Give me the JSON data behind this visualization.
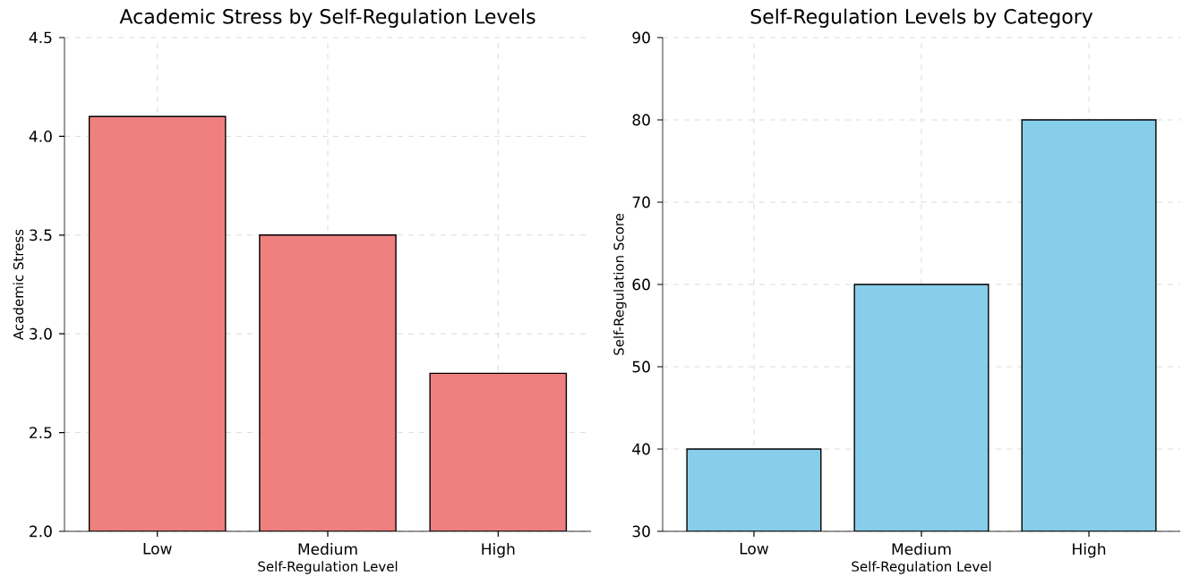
{
  "chart_data": [
    {
      "type": "bar",
      "title": "Academic Stress by Self-Regulation Levels",
      "xlabel": "Self-Regulation Level",
      "ylabel": "Academic Stress",
      "categories": [
        "Low",
        "Medium",
        "High"
      ],
      "values": [
        4.1,
        3.5,
        2.8
      ],
      "color": "#f08080",
      "ylim": [
        2,
        4.5
      ],
      "yticks": [
        {
          "value": 2,
          "label": "2.0"
        },
        {
          "value": 2.5,
          "label": "2.5"
        },
        {
          "value": 3,
          "label": "3.0"
        },
        {
          "value": 3.5,
          "label": "3.5"
        },
        {
          "value": 4,
          "label": "4.0"
        },
        {
          "value": 4.5,
          "label": "4.5"
        }
      ],
      "grid": true
    },
    {
      "type": "bar",
      "title": "Self-Regulation Levels by Category",
      "xlabel": "Self-Regulation Level",
      "ylabel": "Self-Regulation Score",
      "categories": [
        "Low",
        "Medium",
        "High"
      ],
      "values": [
        40,
        60,
        80
      ],
      "color": "#87ceeb",
      "ylim": [
        30,
        90
      ],
      "yticks": [
        30,
        40,
        50,
        60,
        70,
        80,
        90
      ],
      "grid": true
    }
  ]
}
